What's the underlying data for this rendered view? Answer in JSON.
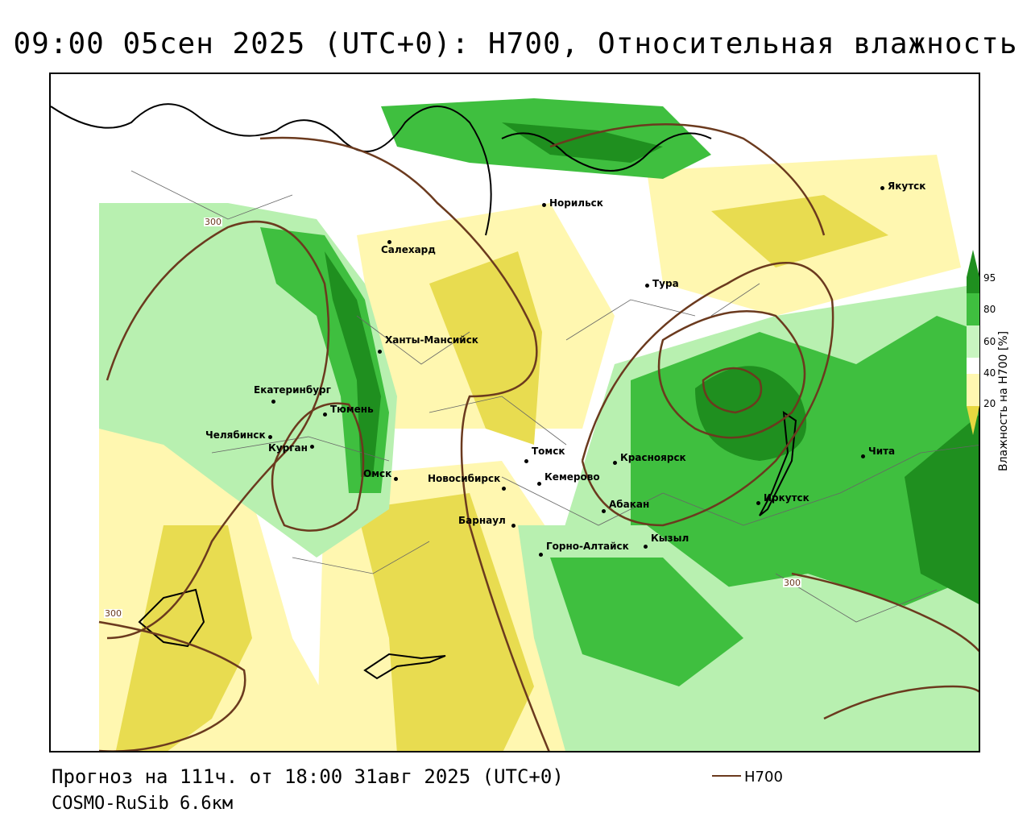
{
  "header": {
    "title": "09:00 05сен 2025 (UTC+0): H700, Относительная влажность"
  },
  "footer": {
    "forecast": "Прогноз на 111ч. от 18:00 31авг 2025 (UTC+0)",
    "model": "COSMO-RuSib 6.6км",
    "legend_label": "H700"
  },
  "colorbar": {
    "title": "Влажность на H700 [%]",
    "ticks": [
      "95",
      "80",
      "60",
      "40",
      "20"
    ],
    "colors": [
      "#1f8f1f",
      "#3fbf3f",
      "#7fe07f",
      "#c8f5c0",
      "#ffffff",
      "#fff7b0",
      "#f0e070",
      "#e6d840"
    ]
  },
  "map": {
    "colors": {
      "contour": "#6b3a1e",
      "green_dark": "#1f8f1f",
      "green": "#3fbf3f",
      "green_light": "#b8f0b0",
      "yellow_light": "#fff7b0",
      "yellow": "#e8dc50"
    },
    "cities": [
      {
        "name": "Якутск"
      },
      {
        "name": "Норильск"
      },
      {
        "name": "Салехард"
      },
      {
        "name": "Тура"
      },
      {
        "name": "Ханты-Мансийск"
      },
      {
        "name": "Екатеринбург"
      },
      {
        "name": "Тюмень"
      },
      {
        "name": "Челябинск"
      },
      {
        "name": "Курган"
      },
      {
        "name": "Омск"
      },
      {
        "name": "Томск"
      },
      {
        "name": "Красноярск"
      },
      {
        "name": "Новосибирск"
      },
      {
        "name": "Кемерово"
      },
      {
        "name": "Абакан"
      },
      {
        "name": "Барнаул"
      },
      {
        "name": "Горно-Алтайск"
      },
      {
        "name": "Кызыл"
      },
      {
        "name": "Иркутск"
      },
      {
        "name": "Чита"
      }
    ],
    "contour_labels": [
      "300",
      "300",
      "300"
    ]
  }
}
